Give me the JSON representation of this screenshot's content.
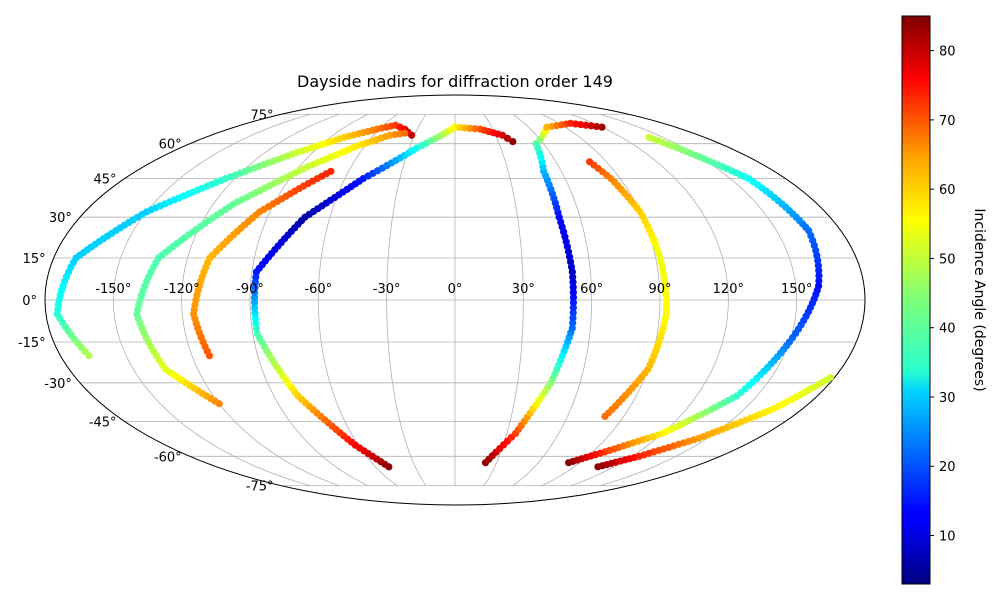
{
  "chart_data": {
    "type": "scatter",
    "projection": "mollweide",
    "title": "Dayside nadirs for diffraction order 149",
    "xlabel": "",
    "ylabel": "",
    "longitude_ticks": [
      "-150°",
      "-120°",
      "-90°",
      "-60°",
      "-30°",
      "0°",
      "30°",
      "60°",
      "90°",
      "120°",
      "150°"
    ],
    "latitude_ticks": [
      "-75°",
      "-60°",
      "-45°",
      "-30°",
      "-15°",
      "0°",
      "15°",
      "30°",
      "45°",
      "60°",
      "75°"
    ],
    "grid": true,
    "colorbar": {
      "label": "Incidence Angle (degrees)",
      "colormap": "jet",
      "range": [
        3,
        85
      ],
      "ticks": [
        "10",
        "20",
        "30",
        "40",
        "50",
        "60",
        "70",
        "80"
      ]
    },
    "series": [
      {
        "points": [
          {
            "lon": -167,
            "lat": -20,
            "inc": 48
          },
          {
            "lon": -175,
            "lat": -5,
            "inc": 37
          },
          {
            "lon": -170,
            "lat": 15,
            "inc": 30
          },
          {
            "lon": -150,
            "lat": 32,
            "inc": 30
          },
          {
            "lon": -125,
            "lat": 45,
            "inc": 38
          },
          {
            "lon": -100,
            "lat": 56,
            "inc": 50
          },
          {
            "lon": -80,
            "lat": 63,
            "inc": 58
          },
          {
            "lon": -62,
            "lat": 67,
            "inc": 65
          },
          {
            "lon": -50,
            "lat": 69,
            "inc": 70
          },
          {
            "lon": -40,
            "lat": 67,
            "inc": 76
          },
          {
            "lon": -32,
            "lat": 64,
            "inc": 80
          }
        ]
      },
      {
        "points": [
          {
            "lon": -120,
            "lat": -38,
            "inc": 64
          },
          {
            "lon": -135,
            "lat": -25,
            "inc": 52
          },
          {
            "lon": -140,
            "lat": -5,
            "inc": 42
          },
          {
            "lon": -133,
            "lat": 15,
            "inc": 40
          },
          {
            "lon": -110,
            "lat": 35,
            "inc": 42
          },
          {
            "lon": -85,
            "lat": 50,
            "inc": 50
          },
          {
            "lon": -65,
            "lat": 59,
            "inc": 56
          },
          {
            "lon": -48,
            "lat": 64,
            "inc": 62
          },
          {
            "lon": -38,
            "lat": 65,
            "inc": 66
          }
        ]
      },
      {
        "points": [
          {
            "lon": -112,
            "lat": -20,
            "inc": 68
          },
          {
            "lon": -115,
            "lat": -5,
            "inc": 63
          },
          {
            "lon": -110,
            "lat": 15,
            "inc": 60
          },
          {
            "lon": -95,
            "lat": 32,
            "inc": 64
          },
          {
            "lon": -80,
            "lat": 42,
            "inc": 70
          },
          {
            "lon": -70,
            "lat": 48,
            "inc": 72
          }
        ]
      },
      {
        "points": [
          {
            "lon": -50,
            "lat": -65,
            "inc": 84
          },
          {
            "lon": -62,
            "lat": -55,
            "inc": 75
          },
          {
            "lon": -78,
            "lat": -35,
            "inc": 58
          },
          {
            "lon": -88,
            "lat": -12,
            "inc": 40
          },
          {
            "lon": -88,
            "lat": 10,
            "inc": 15
          },
          {
            "lon": -72,
            "lat": 30,
            "inc": 6
          },
          {
            "lon": -50,
            "lat": 45,
            "inc": 15
          },
          {
            "lon": -25,
            "lat": 58,
            "inc": 35
          },
          {
            "lon": 0,
            "lat": 68,
            "inc": 55
          },
          {
            "lon": 20,
            "lat": 67,
            "inc": 68
          },
          {
            "lon": 35,
            "lat": 64,
            "inc": 78
          },
          {
            "lon": 40,
            "lat": 61,
            "inc": 84
          }
        ]
      },
      {
        "points": [
          {
            "lon": 22,
            "lat": -63,
            "inc": 84
          },
          {
            "lon": 35,
            "lat": -50,
            "inc": 70
          },
          {
            "lon": 46,
            "lat": -30,
            "inc": 45
          },
          {
            "lon": 52,
            "lat": -10,
            "inc": 22
          },
          {
            "lon": 52,
            "lat": 10,
            "inc": 8
          },
          {
            "lon": 50,
            "lat": 30,
            "inc": 14
          },
          {
            "lon": 50,
            "lat": 48,
            "inc": 28
          },
          {
            "lon": 55,
            "lat": 60,
            "inc": 40
          },
          {
            "lon": 75,
            "lat": 68,
            "inc": 60
          },
          {
            "lon": 100,
            "lat": 70,
            "inc": 72
          },
          {
            "lon": 120,
            "lat": 68,
            "inc": 82
          }
        ]
      },
      {
        "points": [
          {
            "lon": 80,
            "lat": -43,
            "inc": 66
          },
          {
            "lon": 90,
            "lat": -25,
            "inc": 60
          },
          {
            "lon": 93,
            "lat": -5,
            "inc": 54
          },
          {
            "lon": 92,
            "lat": 15,
            "inc": 53
          },
          {
            "lon": 90,
            "lat": 32,
            "inc": 58
          },
          {
            "lon": 85,
            "lat": 45,
            "inc": 64
          },
          {
            "lon": 80,
            "lat": 52,
            "inc": 70
          }
        ]
      },
      {
        "points": [
          {
            "lon": 140,
            "lat": 63,
            "inc": 50
          },
          {
            "lon": 160,
            "lat": 45,
            "inc": 35
          },
          {
            "lon": 165,
            "lat": 25,
            "inc": 22
          },
          {
            "lon": 160,
            "lat": 5,
            "inc": 14
          },
          {
            "lon": 150,
            "lat": -15,
            "inc": 22
          },
          {
            "lon": 140,
            "lat": -35,
            "inc": 38
          },
          {
            "lon": 120,
            "lat": -50,
            "inc": 55
          },
          {
            "lon": 98,
            "lat": -58,
            "inc": 70
          },
          {
            "lon": 82,
            "lat": -63,
            "inc": 84
          }
        ]
      },
      {
        "points": [
          {
            "lon": 178,
            "lat": -28,
            "inc": 50
          },
          {
            "lon": 165,
            "lat": -40,
            "inc": 55
          },
          {
            "lon": 145,
            "lat": -52,
            "inc": 62
          },
          {
            "lon": 125,
            "lat": -60,
            "inc": 72
          },
          {
            "lon": 108,
            "lat": -65,
            "inc": 84
          }
        ]
      }
    ]
  }
}
